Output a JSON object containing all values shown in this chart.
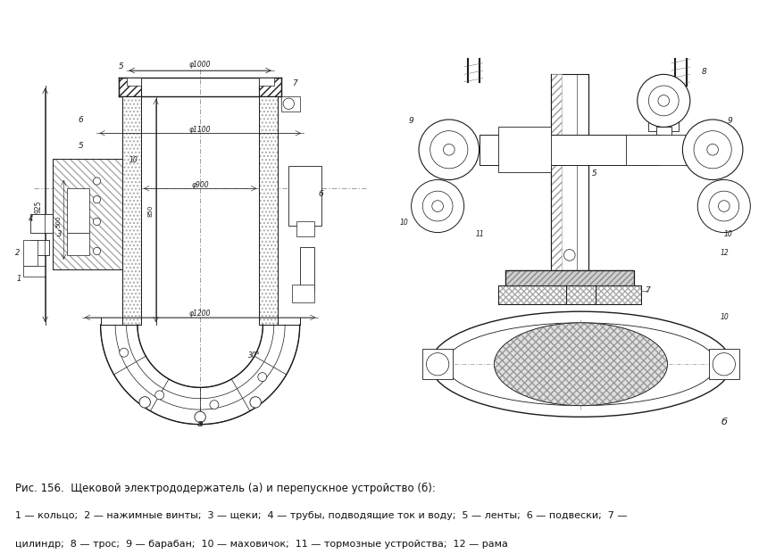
{
  "background_color": "#ffffff",
  "figure_width": 8.79,
  "figure_height": 6.21,
  "caption_line1": "Рис. 156.  Щековой электрододержатель (а) и перепускное устройство (б):",
  "caption_line2": "1 — кольцо;  2 — нажимные винты;  3 — щеки;  4 — трубы, подводящие ток и воду;  5 — ленты;  6 — подвески;  7 —",
  "caption_line3": "цилиндр;  8 — трос;  9 — барабан;  10 — маховичок;  11 — тормозные устройства;  12 — рама",
  "lc": "#1a1a1a",
  "gray": "#888888",
  "lightgray": "#cccccc",
  "hatchgray": "#999999"
}
